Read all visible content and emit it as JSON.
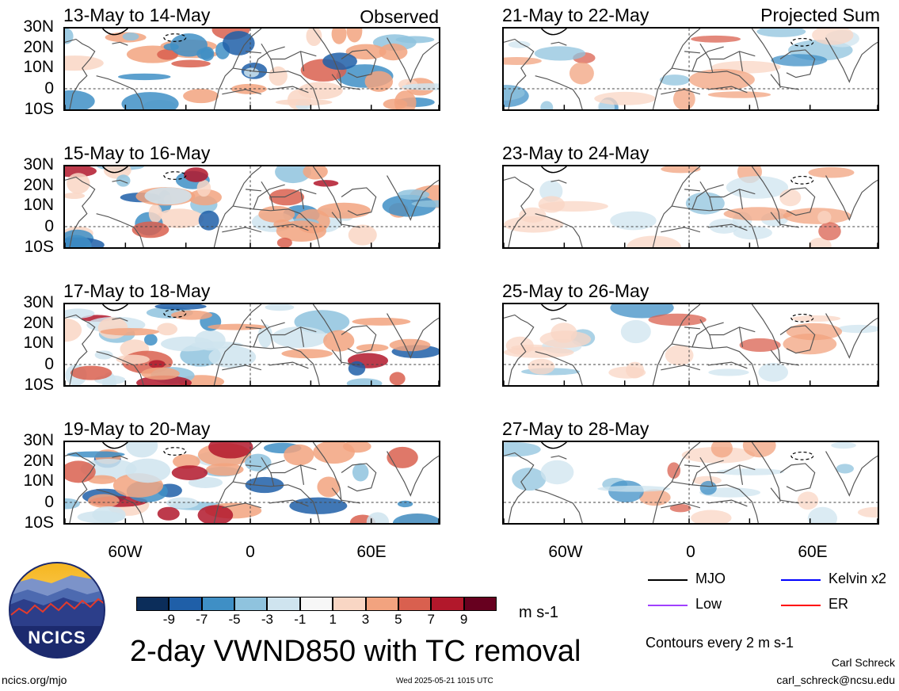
{
  "header": {
    "left_tag": "Observed",
    "right_tag": "Projected Sum"
  },
  "panels_left": [
    {
      "date": "13-May to 14-May"
    },
    {
      "date": "15-May to 16-May"
    },
    {
      "date": "17-May to 18-May"
    },
    {
      "date": "19-May to 20-May"
    }
  ],
  "panels_right": [
    {
      "date": "21-May to 22-May"
    },
    {
      "date": "23-May to 24-May"
    },
    {
      "date": "25-May to 26-May"
    },
    {
      "date": "27-May to 28-May"
    }
  ],
  "lat_labels": [
    "30N",
    "20N",
    "10N",
    "0",
    "10S"
  ],
  "lon_labels": [
    "60W",
    "0",
    "60E"
  ],
  "colorbar": {
    "ticks": [
      "-9",
      "-7",
      "-5",
      "-3",
      "-1",
      "1",
      "3",
      "5",
      "7",
      "9"
    ],
    "colors": [
      "#0b2d5a",
      "#1f5fa8",
      "#3f8fc5",
      "#8fc3de",
      "#cfe4ef",
      "#f7f7f7",
      "#f9d6c4",
      "#f2a37f",
      "#d9604f",
      "#b2182b",
      "#67001f"
    ],
    "units": "m s-1"
  },
  "legend": {
    "items": [
      {
        "label": "MJO",
        "color": "#000000"
      },
      {
        "label": "Kelvin x2",
        "color": "#0000ff"
      },
      {
        "label": "Low",
        "color": "#a040ff"
      },
      {
        "label": "ER",
        "color": "#ff0000"
      }
    ],
    "contour_note": "Contours every 2 m s-1"
  },
  "footer": {
    "title": "2-day VWND850 with TC removal",
    "logo_text": "NCICS",
    "url": "ncics.org/mjo",
    "timestamp": "Wed 2025-05-21 1015 UTC",
    "author": "Carl Schreck",
    "email": "carl_schreck@ncsu.edu"
  }
}
